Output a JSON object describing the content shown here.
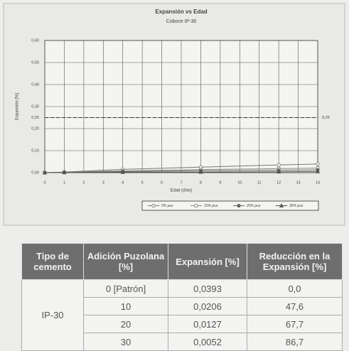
{
  "chart_data": {
    "type": "line",
    "title": "Expansión vs Edad",
    "subtitle": "Coboce IP-30",
    "x_label": "Edad (días)",
    "y_label": "Expansión [%]",
    "x": [
      0,
      1,
      4,
      8,
      12,
      14
    ],
    "xlim": [
      0,
      14
    ],
    "xticks": [
      0,
      1,
      2,
      3,
      4,
      5,
      6,
      7,
      8,
      9,
      10,
      11,
      12,
      13,
      14
    ],
    "ylim": [
      0,
      0.6
    ],
    "yticks": [
      {
        "value": 0,
        "label": "0,00"
      },
      {
        "value": 0.1,
        "label": "0,10"
      },
      {
        "value": 0.2,
        "label": "0,20"
      },
      {
        "value": 0.25,
        "label": "0,25"
      },
      {
        "value": 0.3,
        "label": "0,30"
      },
      {
        "value": 0.4,
        "label": "0,40"
      },
      {
        "value": 0.5,
        "label": "0,50"
      },
      {
        "value": 0.6,
        "label": "0,60"
      }
    ],
    "grid": true,
    "reference_line": {
      "value": 0.25,
      "label": "0,25"
    },
    "legend": "bottom-right",
    "series": [
      {
        "name": "0% puz",
        "color": "#777777",
        "marker": "open-circle",
        "values": [
          0,
          0.003,
          0.015,
          0.025,
          0.035,
          0.0393
        ]
      },
      {
        "name": "10% puz",
        "color": "#888888",
        "marker": "open-square",
        "values": [
          0,
          0.002,
          0.008,
          0.014,
          0.018,
          0.0206
        ]
      },
      {
        "name": "20% puz",
        "color": "#666666",
        "marker": "filled-circle",
        "values": [
          0,
          0.001,
          0.005,
          0.009,
          0.011,
          0.0127
        ]
      },
      {
        "name": "30% puz",
        "color": "#555555",
        "marker": "filled-triangle",
        "values": [
          0,
          0.001,
          0.002,
          0.003,
          0.004,
          0.0052
        ]
      }
    ]
  },
  "table": {
    "headers": [
      "Tipo de cemento",
      "Adición Puzolana [%]",
      "Expansión [%]",
      "Reducción en la Expansión [%]"
    ],
    "group": "IP-30",
    "rows": [
      [
        "0 [Patrón]",
        "0,0393",
        "0,0"
      ],
      [
        "10",
        "0,0206",
        "47,6"
      ],
      [
        "20",
        "0,0127",
        "67,7"
      ],
      [
        "30",
        "0,0052",
        "86,7"
      ]
    ]
  }
}
